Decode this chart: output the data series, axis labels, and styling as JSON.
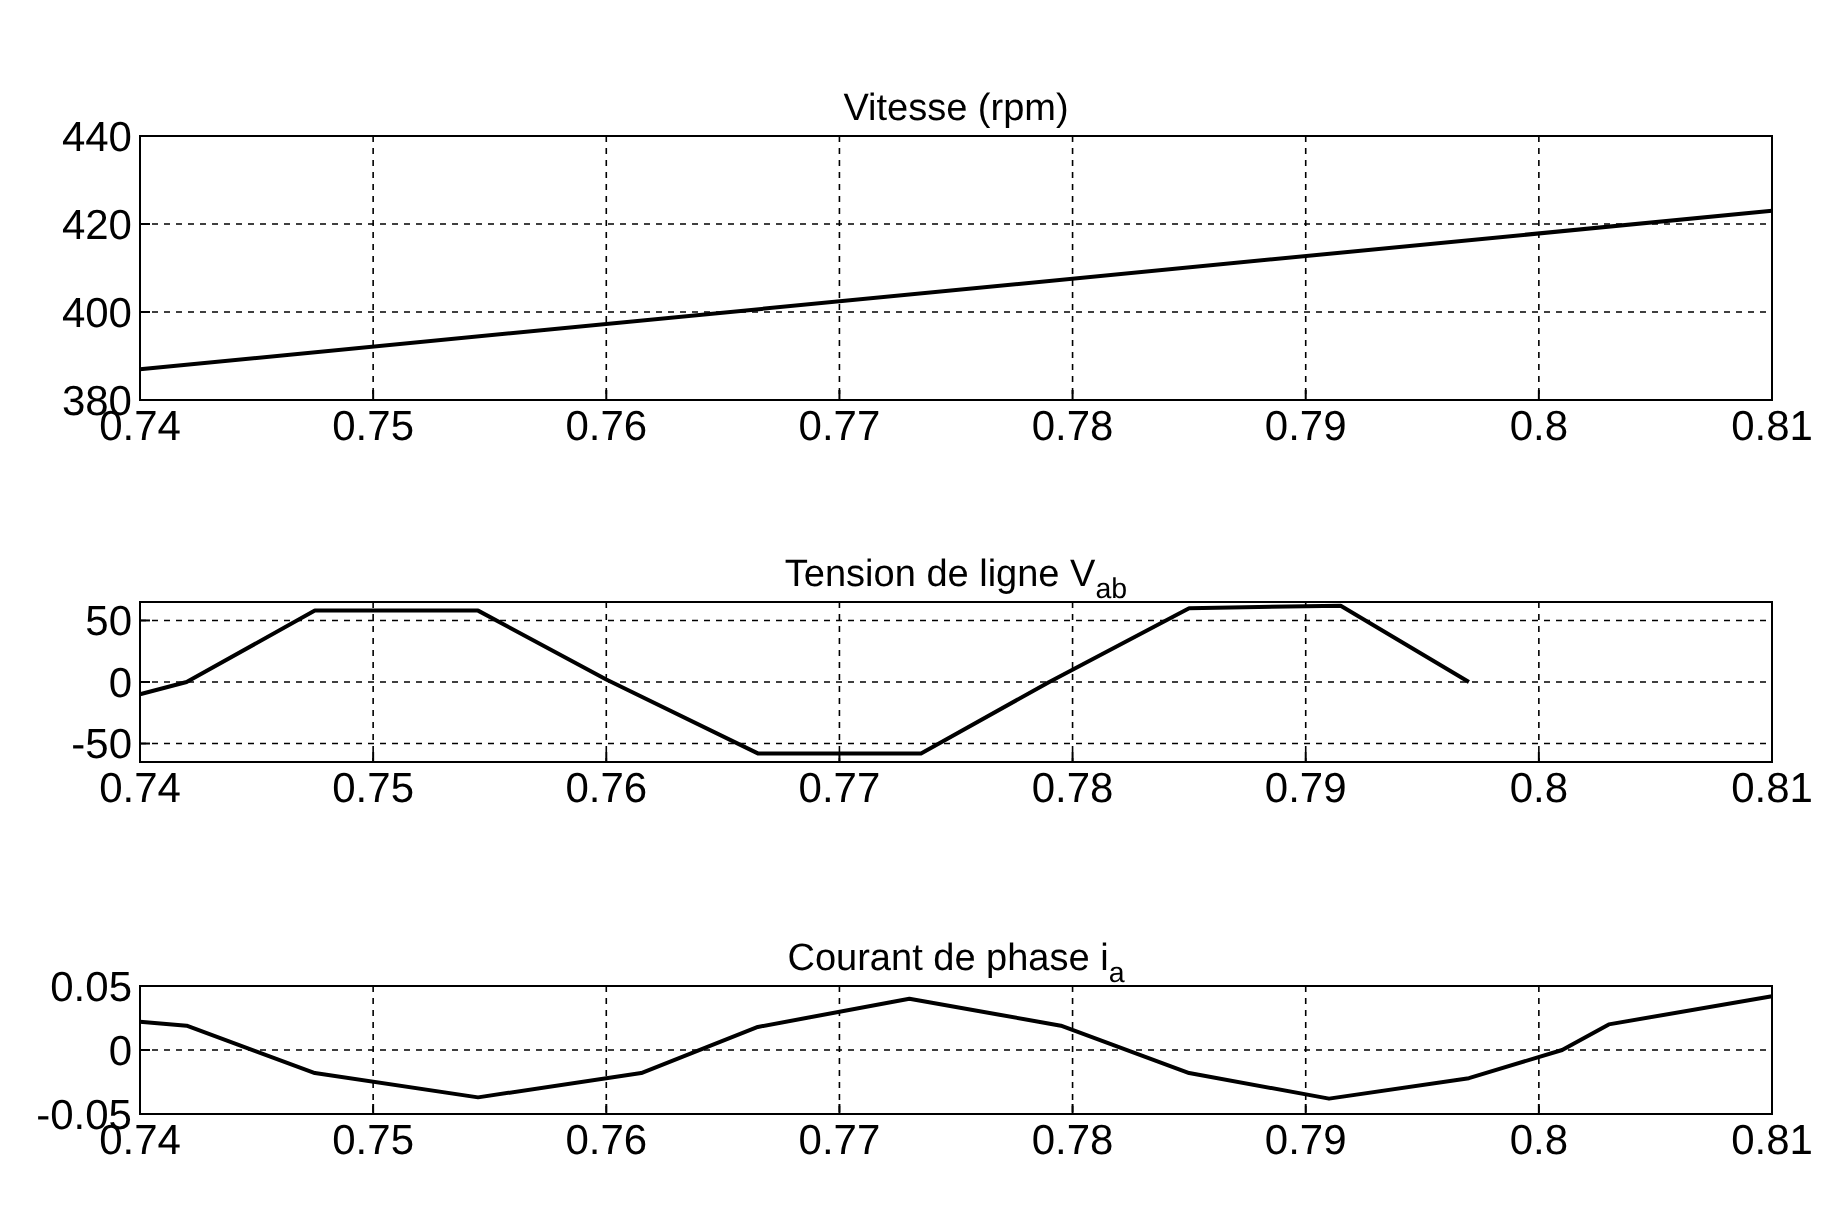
{
  "chart_data": [
    {
      "type": "line",
      "title": "Vitesse (rpm)",
      "xlim": [
        0.74,
        0.81
      ],
      "xticks": [
        0.74,
        0.75,
        0.76,
        0.77,
        0.78,
        0.79,
        0.8,
        0.81
      ],
      "ylim": [
        380,
        440
      ],
      "yticks": [
        380,
        400,
        420,
        440
      ],
      "grid": true,
      "x": [
        0.74,
        0.81
      ],
      "series": [
        {
          "color": "#000000",
          "values": [
            387,
            423
          ]
        }
      ]
    },
    {
      "type": "line",
      "title": "Tension de ligne V$_{ab}$",
      "xlim": [
        0.74,
        0.81
      ],
      "xticks": [
        0.74,
        0.75,
        0.76,
        0.77,
        0.78,
        0.79,
        0.8,
        0.81
      ],
      "ylim": [
        -65,
        65
      ],
      "yticks": [
        -50,
        0,
        50
      ],
      "grid": true,
      "x": [
        0.74,
        0.742,
        0.7475,
        0.7545,
        0.76,
        0.7665,
        0.7735,
        0.779,
        0.785,
        0.7915,
        0.797
      ],
      "series": [
        {
          "color": "#000000",
          "values": [
            -10,
            0,
            58,
            58,
            2,
            -58,
            -58,
            0,
            60,
            62,
            0
          ]
        }
      ]
    },
    {
      "type": "line",
      "title": "Courant de phase i$_{a}$",
      "xlim": [
        0.74,
        0.81
      ],
      "xticks": [
        0.74,
        0.75,
        0.76,
        0.77,
        0.78,
        0.79,
        0.8,
        0.81
      ],
      "ylim": [
        -0.05,
        0.05
      ],
      "yticks": [
        -0.05,
        0,
        0.05
      ],
      "grid": true,
      "x": [
        0.74,
        0.742,
        0.7475,
        0.7545,
        0.7615,
        0.7665,
        0.773,
        0.7795,
        0.785,
        0.791,
        0.797,
        0.801,
        0.803,
        0.81
      ],
      "series": [
        {
          "color": "#000000",
          "values": [
            0.022,
            0.019,
            -0.018,
            -0.037,
            -0.018,
            0.018,
            0.04,
            0.019,
            -0.018,
            -0.038,
            -0.022,
            0,
            0.02,
            0.042
          ]
        }
      ]
    }
  ]
}
